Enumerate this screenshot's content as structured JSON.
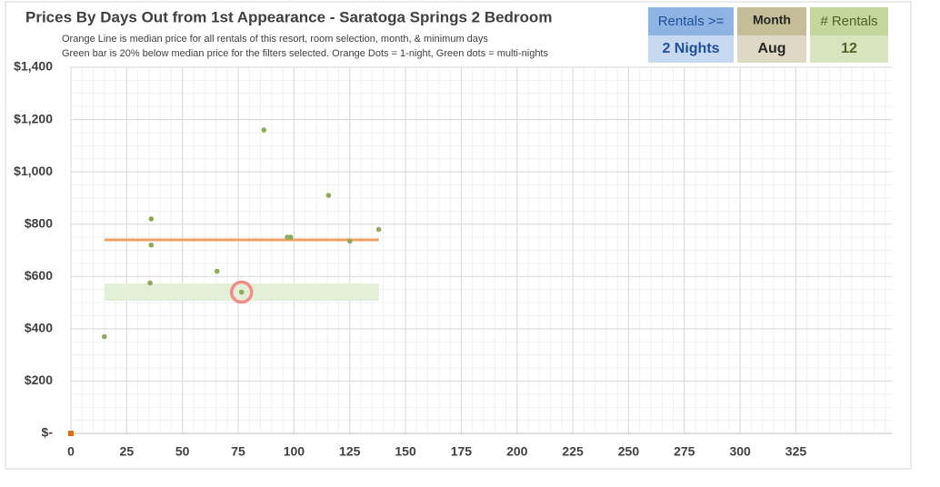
{
  "chart_data": {
    "type": "scatter",
    "title": "Prices By Days Out from 1st Appearance - Saratoga Springs 2 Bedroom",
    "notes": [
      "Orange Line is median price for all rentals of this resort, room selection, month, & minimum days",
      "Green bar is 20% below median price for the filters selected. Orange Dots = 1-night, Green dots = multi-nights"
    ],
    "xlim": [
      0,
      368
    ],
    "xticks": [
      0,
      25,
      50,
      75,
      100,
      125,
      150,
      175,
      200,
      225,
      250,
      275,
      300,
      325
    ],
    "ylim": [
      0,
      1400
    ],
    "yticks": [
      {
        "value": 0,
        "label": "$-"
      },
      {
        "value": 200,
        "label": "$200"
      },
      {
        "value": 400,
        "label": "$400"
      },
      {
        "value": 600,
        "label": "$600"
      },
      {
        "value": 800,
        "label": "$800"
      },
      {
        "value": 1000,
        "label": "$1,000"
      },
      {
        "value": 1200,
        "label": "$1,200"
      },
      {
        "value": 1400,
        "label": "$1,400"
      }
    ],
    "grid": true,
    "minor_grid": {
      "x": 5,
      "y": 4
    },
    "series": [
      {
        "color": "#8faa5a",
        "x": [
          15,
          36,
          36,
          35.5,
          65.5,
          76.5,
          86.5,
          97,
          98.5,
          115.5,
          125,
          138
        ],
        "values": [
          370,
          820,
          720,
          575,
          620,
          540,
          1160,
          750,
          750,
          910,
          735,
          780
        ]
      },
      {
        "color": "#e46c0a",
        "x": [
          0
        ],
        "values": [
          0
        ]
      }
    ],
    "median_line": {
      "color": "#f0a064",
      "x": [
        15,
        138
      ],
      "value": 740
    },
    "band": {
      "color": "#e3efd6",
      "x": [
        15,
        138
      ],
      "y": [
        507,
        573
      ]
    },
    "highlight": {
      "series": 0,
      "index": 5,
      "color": "#f08c8c"
    }
  },
  "filters": [
    {
      "header": "Rentals >=",
      "value": "2 Nights"
    },
    {
      "header": "Month",
      "value": "Aug"
    },
    {
      "header": "# Rentals",
      "value": "12"
    }
  ]
}
